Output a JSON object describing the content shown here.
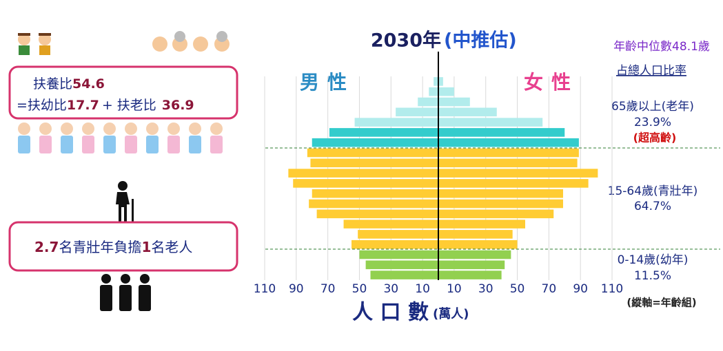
{
  "chart_data": {
    "type": "pyramid",
    "title": "2030年",
    "title_note": "(中推估)",
    "median": "年齡中位數48.1歲",
    "share_heading": "占總人口比率",
    "xlabel": "人 口 數",
    "xlabel_unit": "(萬人)",
    "axis_note": "(縱軸=年齡組)",
    "categories": [
      null,
      null,
      null,
      null,
      null,
      null,
      null,
      null,
      null,
      null,
      null,
      null,
      null,
      null,
      null,
      null,
      null,
      null,
      null,
      null
    ],
    "series": [
      {
        "name": "男性",
        "color": "#2b8cc4",
        "values": [
          43,
          46,
          50,
          55,
          51,
          60,
          77,
          82,
          80,
          92,
          95,
          81,
          83,
          80,
          69,
          53,
          27,
          13,
          6,
          3
        ]
      },
      {
        "name": "女性",
        "color": "#e8408f",
        "values": [
          40,
          42,
          46,
          50,
          47,
          55,
          73,
          79,
          79,
          95,
          101,
          88,
          89,
          89,
          80,
          66,
          37,
          20,
          10,
          3
        ]
      }
    ],
    "bar_colors": [
      "#92d050",
      "#92d050",
      "#92d050",
      "#ffcc33",
      "#ffcc33",
      "#ffcc33",
      "#ffcc33",
      "#ffcc33",
      "#ffcc33",
      "#ffcc33",
      "#ffcc33",
      "#ffcc33",
      "#ffcc33",
      "#33cccc",
      "#33cccc",
      "#b2ecec",
      "#b2ecec",
      "#b2ecec",
      "#b2ecec",
      "#b2ecec"
    ],
    "xlim": [
      0,
      110
    ],
    "xticks": [
      10,
      30,
      50,
      70,
      90,
      110
    ],
    "grid": true,
    "age_groups": [
      {
        "label": "65歲以上(老年)",
        "share": "23.9%",
        "note": "(超高齡)"
      },
      {
        "label": "15-64歲(青壯年)",
        "share": "64.7%"
      },
      {
        "label": "0-14歲(幼年)",
        "share": "11.5%"
      }
    ]
  },
  "dependency": {
    "label": "扶養比",
    "total": "54.6",
    "eq": "=扶幼比",
    "young": "17.7",
    "plus": "+",
    "old_label": "扶老比",
    "old": "36.9"
  },
  "burden": {
    "workers": "2.7",
    "middle": "名青壯年負擔",
    "elders": "1",
    "end": "名老人"
  }
}
